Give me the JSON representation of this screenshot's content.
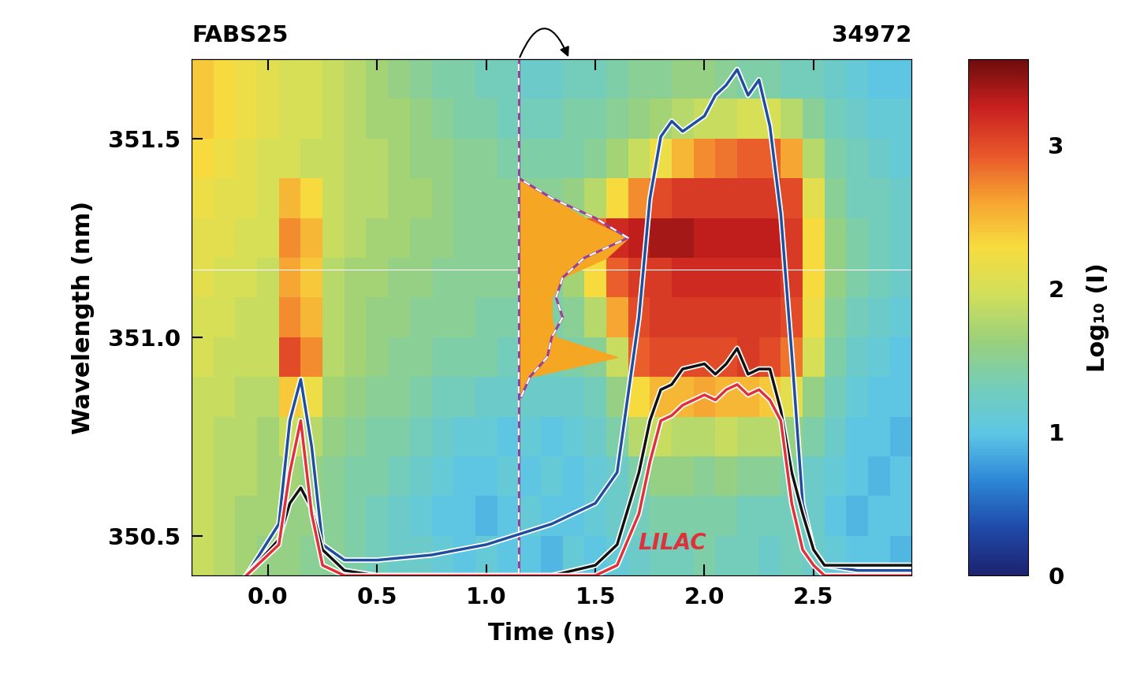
{
  "chart_data": {
    "type": "heatmap",
    "title": "FABS25",
    "subtitle": "34972",
    "x_label": "Time (ns)",
    "y_label": "Wavelength (nm)",
    "xlim": [
      -0.35,
      2.95
    ],
    "xticks": [
      0.0,
      0.5,
      1.0,
      1.5,
      2.0,
      2.5
    ],
    "ylim": [
      350.4,
      351.7
    ],
    "yticks": [
      350.5,
      351.0,
      351.5
    ],
    "heatmap": {
      "x": [
        -0.3,
        -0.2,
        -0.1,
        0.0,
        0.1,
        0.2,
        0.3,
        0.4,
        0.5,
        0.6,
        0.7,
        0.8,
        0.9,
        1.0,
        1.1,
        1.2,
        1.3,
        1.4,
        1.5,
        1.6,
        1.7,
        1.8,
        1.9,
        2.0,
        2.1,
        2.2,
        2.3,
        2.4,
        2.5,
        2.6,
        2.7,
        2.8,
        2.9
      ],
      "y": [
        350.45,
        350.55,
        350.65,
        350.75,
        350.85,
        350.95,
        351.05,
        351.15,
        351.25,
        351.35,
        351.45,
        351.55,
        351.65
      ],
      "cells": [
        [
          1.9,
          1.8,
          1.7,
          1.6,
          1.6,
          1.5,
          1.5,
          1.4,
          1.3,
          1.2,
          1.2,
          1.1,
          1.0,
          1.1,
          1.0,
          1.0,
          0.9,
          1.1,
          1.0,
          1.1,
          1.2,
          1.3,
          1.3,
          1.4,
          1.3,
          1.3,
          1.2,
          1.3,
          1.2,
          1.1,
          1.0,
          1.0,
          0.9
        ],
        [
          1.9,
          1.8,
          1.7,
          1.7,
          1.6,
          1.6,
          1.5,
          1.4,
          1.3,
          1.2,
          1.1,
          1.0,
          1.0,
          0.9,
          1.0,
          1.1,
          1.0,
          1.0,
          1.1,
          1.2,
          1.3,
          1.4,
          1.4,
          1.4,
          1.4,
          1.3,
          1.3,
          1.3,
          1.2,
          1.0,
          0.9,
          1.0,
          1.0
        ],
        [
          1.9,
          1.8,
          1.8,
          1.7,
          1.7,
          1.6,
          1.5,
          1.4,
          1.4,
          1.3,
          1.2,
          1.1,
          1.0,
          1.0,
          1.1,
          1.0,
          1.1,
          1.0,
          1.1,
          1.2,
          1.4,
          1.6,
          1.6,
          1.5,
          1.6,
          1.5,
          1.5,
          1.4,
          1.2,
          1.1,
          1.0,
          0.9,
          1.0
        ],
        [
          1.9,
          1.8,
          1.8,
          1.7,
          1.9,
          1.8,
          1.6,
          1.5,
          1.4,
          1.4,
          1.3,
          1.2,
          1.1,
          1.1,
          1.0,
          1.1,
          1.0,
          1.1,
          1.2,
          1.4,
          1.8,
          1.9,
          1.8,
          1.8,
          1.9,
          1.8,
          1.8,
          1.6,
          1.4,
          1.2,
          1.0,
          1.0,
          0.9
        ],
        [
          1.9,
          1.9,
          1.8,
          1.8,
          2.4,
          2.2,
          1.7,
          1.6,
          1.5,
          1.5,
          1.4,
          1.3,
          1.3,
          1.2,
          1.2,
          1.2,
          1.2,
          1.2,
          1.3,
          1.6,
          2.3,
          2.5,
          2.5,
          2.6,
          2.5,
          2.5,
          2.4,
          2.1,
          1.6,
          1.3,
          1.1,
          1.0,
          1.0
        ],
        [
          2.0,
          1.9,
          1.9,
          1.9,
          3.0,
          2.7,
          1.8,
          1.7,
          1.6,
          1.5,
          1.5,
          1.4,
          1.4,
          1.4,
          1.3,
          1.3,
          1.3,
          1.4,
          1.5,
          1.9,
          2.9,
          3.0,
          3.0,
          3.0,
          3.0,
          3.1,
          3.0,
          2.8,
          2.0,
          1.4,
          1.2,
          1.1,
          1.0
        ],
        [
          2.0,
          2.0,
          1.9,
          1.9,
          2.7,
          2.5,
          1.8,
          1.7,
          1.6,
          1.6,
          1.5,
          1.5,
          1.5,
          1.4,
          1.4,
          1.4,
          1.4,
          1.5,
          1.8,
          2.6,
          3.0,
          3.1,
          3.1,
          3.1,
          3.1,
          3.1,
          3.1,
          3.0,
          2.2,
          1.5,
          1.3,
          1.2,
          1.1
        ],
        [
          2.1,
          2.0,
          2.0,
          1.9,
          2.6,
          2.4,
          1.8,
          1.7,
          1.7,
          1.6,
          1.6,
          1.5,
          1.5,
          1.5,
          1.5,
          1.5,
          1.5,
          1.7,
          2.3,
          2.9,
          3.1,
          3.1,
          3.2,
          3.2,
          3.2,
          3.2,
          3.2,
          3.1,
          2.3,
          1.6,
          1.4,
          1.3,
          1.2
        ],
        [
          2.1,
          2.1,
          2.0,
          2.0,
          2.7,
          2.5,
          1.9,
          1.8,
          1.7,
          1.7,
          1.6,
          1.6,
          1.5,
          1.5,
          1.5,
          1.5,
          1.6,
          1.9,
          2.9,
          3.2,
          3.3,
          3.4,
          3.4,
          3.3,
          3.3,
          3.3,
          3.3,
          3.1,
          2.3,
          1.6,
          1.4,
          1.3,
          1.2
        ],
        [
          2.2,
          2.1,
          2.1,
          2.0,
          2.5,
          2.3,
          1.9,
          1.8,
          1.8,
          1.7,
          1.7,
          1.6,
          1.5,
          1.5,
          1.5,
          1.5,
          1.5,
          1.6,
          1.8,
          2.3,
          2.7,
          3.0,
          3.1,
          3.1,
          3.1,
          3.1,
          3.1,
          3.0,
          2.1,
          1.5,
          1.3,
          1.3,
          1.2
        ],
        [
          2.3,
          2.2,
          2.1,
          2.0,
          2.0,
          1.9,
          1.9,
          1.8,
          1.8,
          1.7,
          1.6,
          1.6,
          1.5,
          1.5,
          1.4,
          1.4,
          1.4,
          1.4,
          1.5,
          1.7,
          1.9,
          2.2,
          2.5,
          2.7,
          2.8,
          2.9,
          2.9,
          2.6,
          1.8,
          1.4,
          1.3,
          1.2,
          1.1
        ],
        [
          2.4,
          2.3,
          2.2,
          2.1,
          2.0,
          2.0,
          1.9,
          1.8,
          1.7,
          1.7,
          1.6,
          1.5,
          1.4,
          1.4,
          1.3,
          1.3,
          1.3,
          1.4,
          1.4,
          1.5,
          1.6,
          1.7,
          1.8,
          1.9,
          1.9,
          2.0,
          2.0,
          1.8,
          1.5,
          1.3,
          1.2,
          1.1,
          1.1
        ],
        [
          2.4,
          2.3,
          2.2,
          2.1,
          2.0,
          2.0,
          1.9,
          1.8,
          1.7,
          1.6,
          1.5,
          1.4,
          1.4,
          1.3,
          1.3,
          1.2,
          1.2,
          1.3,
          1.3,
          1.4,
          1.5,
          1.5,
          1.6,
          1.6,
          1.5,
          1.4,
          1.4,
          1.3,
          1.3,
          1.2,
          1.1,
          1.0,
          1.0
        ]
      ],
      "colorbar_label": "Log₁₀ (I)",
      "colorbar_lim": [
        0,
        3.6
      ],
      "colorbar_ticks": [
        0,
        1,
        2,
        3
      ]
    },
    "x": [
      -0.1,
      0.05,
      0.1,
      0.15,
      0.2,
      0.25,
      0.35,
      0.5,
      0.75,
      1.0,
      1.15,
      1.3,
      1.5,
      1.6,
      1.7,
      1.75,
      1.8,
      1.85,
      1.9,
      2.0,
      2.05,
      2.1,
      2.15,
      2.2,
      2.25,
      2.3,
      2.35,
      2.4,
      2.45,
      2.5,
      2.55,
      2.7,
      2.95
    ],
    "series": [
      {
        "color": "#1f4e9e",
        "axis": "y2",
        "values": [
          0.0,
          0.1,
          0.3,
          0.38,
          0.25,
          0.06,
          0.03,
          0.03,
          0.04,
          0.06,
          0.08,
          0.1,
          0.14,
          0.2,
          0.5,
          0.73,
          0.85,
          0.88,
          0.86,
          0.89,
          0.93,
          0.95,
          0.98,
          0.93,
          0.96,
          0.87,
          0.7,
          0.43,
          0.14,
          0.05,
          0.02,
          0.01,
          0.01
        ]
      },
      {
        "color": "#111111",
        "axis": "y2",
        "values": [
          0.0,
          0.07,
          0.14,
          0.17,
          0.13,
          0.05,
          0.01,
          0.0,
          0.0,
          0.0,
          0.0,
          0.0,
          0.02,
          0.06,
          0.2,
          0.3,
          0.36,
          0.37,
          0.4,
          0.41,
          0.39,
          0.41,
          0.44,
          0.39,
          0.4,
          0.4,
          0.32,
          0.2,
          0.12,
          0.05,
          0.02,
          0.02,
          0.02
        ]
      },
      {
        "name": "LILAC",
        "color": "#e0303a",
        "axis": "y2",
        "values": [
          0.0,
          0.06,
          0.2,
          0.3,
          0.12,
          0.02,
          0.0,
          0.0,
          0.0,
          0.0,
          0.0,
          0.0,
          0.0,
          0.02,
          0.12,
          0.22,
          0.3,
          0.31,
          0.33,
          0.35,
          0.34,
          0.36,
          0.37,
          0.35,
          0.36,
          0.34,
          0.3,
          0.14,
          0.05,
          0.02,
          0.0,
          0.0,
          0.0
        ]
      }
    ],
    "y2lim": [
      0,
      1
    ],
    "y2ticks": [],
    "lineout": {
      "time": 1.15,
      "wavelength": [
        350.85,
        350.9,
        350.95,
        351.0,
        351.05,
        351.1,
        351.15,
        351.2,
        351.25,
        351.3,
        351.35,
        351.4
      ],
      "filled": [
        1.15,
        1.2,
        1.6,
        1.32,
        1.3,
        1.3,
        1.35,
        1.55,
        1.65,
        1.45,
        1.3,
        1.15
      ],
      "dashed": [
        1.16,
        1.2,
        1.28,
        1.3,
        1.35,
        1.32,
        1.35,
        1.45,
        1.65,
        1.5,
        1.3,
        1.15
      ]
    },
    "reference_wavelength": 351.17
  }
}
